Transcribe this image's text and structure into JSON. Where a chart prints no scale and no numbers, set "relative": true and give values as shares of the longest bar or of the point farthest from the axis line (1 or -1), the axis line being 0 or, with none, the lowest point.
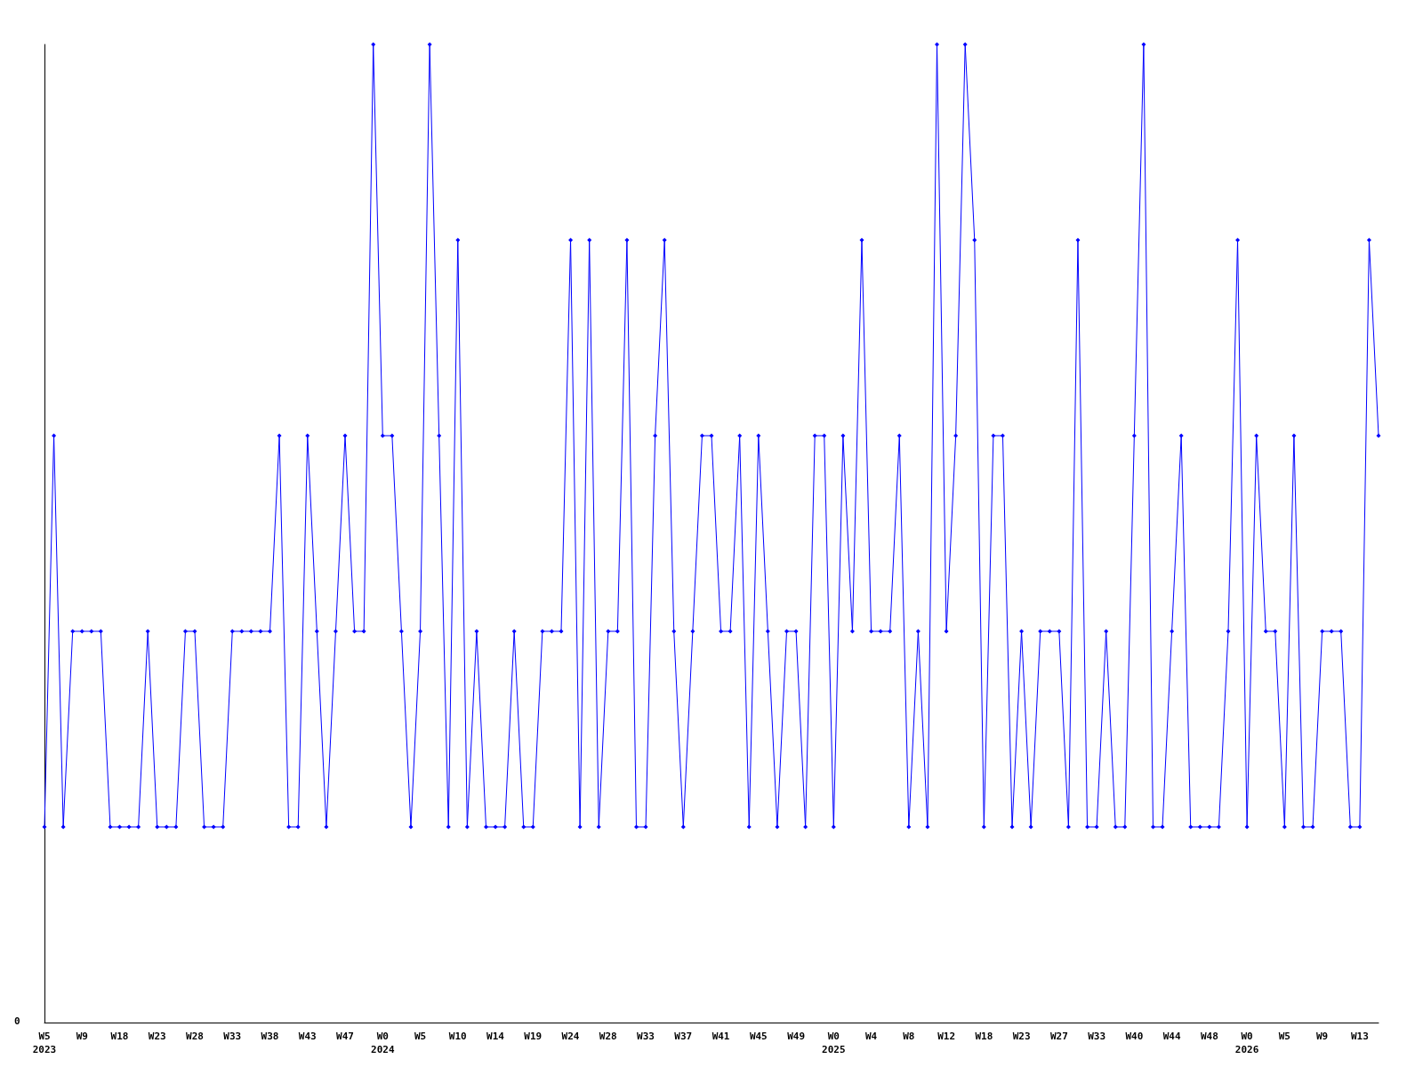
{
  "chart_data": {
    "type": "line",
    "relative": true,
    "marker": "diamond",
    "grid": false,
    "annotations": [
      "0"
    ],
    "categories": [
      "W5\n2023",
      null,
      null,
      null,
      "W9",
      null,
      null,
      null,
      "W18",
      null,
      null,
      null,
      "W23",
      null,
      null,
      null,
      "W28",
      null,
      null,
      null,
      "W33",
      null,
      null,
      null,
      "W38",
      null,
      null,
      null,
      "W43",
      null,
      null,
      null,
      "W47",
      null,
      null,
      null,
      "W0\n2024",
      null,
      null,
      null,
      "W5",
      null,
      null,
      null,
      "W10",
      null,
      null,
      null,
      "W14",
      null,
      null,
      null,
      "W19",
      null,
      null,
      null,
      "W24",
      null,
      null,
      null,
      "W28",
      null,
      null,
      null,
      "W33",
      null,
      null,
      null,
      "W37",
      null,
      null,
      null,
      "W41",
      null,
      null,
      null,
      "W45",
      null,
      null,
      null,
      "W49",
      null,
      null,
      null,
      "W0\n2025",
      null,
      null,
      null,
      "W4",
      null,
      null,
      null,
      "W8",
      null,
      null,
      null,
      "W12",
      null,
      null,
      null,
      "W18",
      null,
      null,
      null,
      "W23",
      null,
      null,
      null,
      "W27",
      null,
      null,
      null,
      "W33",
      null,
      null,
      null,
      "W40",
      null,
      null,
      null,
      "W44",
      null,
      null,
      null,
      "W48",
      null,
      null,
      null,
      "W0\n2026",
      null,
      null,
      null,
      "W5",
      null,
      null,
      null,
      "W9",
      null,
      null,
      null,
      "W13",
      null,
      null
    ],
    "series": [
      {
        "color": "#0000ff",
        "values": [
          0.2,
          0.6,
          0.2,
          0.4,
          0.4,
          0.4,
          0.4,
          0.2,
          0.2,
          0.2,
          0.2,
          0.4,
          0.2,
          0.2,
          0.2,
          0.4,
          0.4,
          0.2,
          0.2,
          0.2,
          0.4,
          0.4,
          0.4,
          0.4,
          0.4,
          0.6,
          0.2,
          0.2,
          0.6,
          0.4,
          0.2,
          0.4,
          0.6,
          0.4,
          0.4,
          1,
          0.6,
          0.6,
          0.4,
          0.2,
          0.4,
          1,
          0.6,
          0.2,
          0.8,
          0.2,
          0.4,
          0.2,
          0.2,
          0.2,
          0.4,
          0.2,
          0.2,
          0.4,
          0.4,
          0.4,
          0.8,
          0.2,
          0.8,
          0.2,
          0.4,
          0.4,
          0.8,
          0.2,
          0.2,
          0.6,
          0.8,
          0.4,
          0.2,
          0.4,
          0.6,
          0.6,
          0.4,
          0.4,
          0.6,
          0.2,
          0.6,
          0.4,
          0.2,
          0.4,
          0.4,
          0.2,
          0.6,
          0.6,
          0.2,
          0.6,
          0.4,
          0.8,
          0.4,
          0.4,
          0.4,
          0.6,
          0.2,
          0.4,
          0.2,
          1,
          0.4,
          0.6,
          1,
          0.8,
          0.2,
          0.6,
          0.6,
          0.2,
          0.4,
          0.2,
          0.4,
          0.4,
          0.4,
          0.2,
          0.8,
          0.2,
          0.2,
          0.4,
          0.2,
          0.2,
          0.6,
          1,
          0.2,
          0.2,
          0.4,
          0.6,
          0.2,
          0.2,
          0.2,
          0.2,
          0.4,
          0.8,
          0.2,
          0.6,
          0.4,
          0.4,
          0.2,
          0.6,
          0.2,
          0.2,
          0.4,
          0.4,
          0.4,
          0.2,
          0.2,
          0.8,
          0.6
        ]
      }
    ]
  }
}
